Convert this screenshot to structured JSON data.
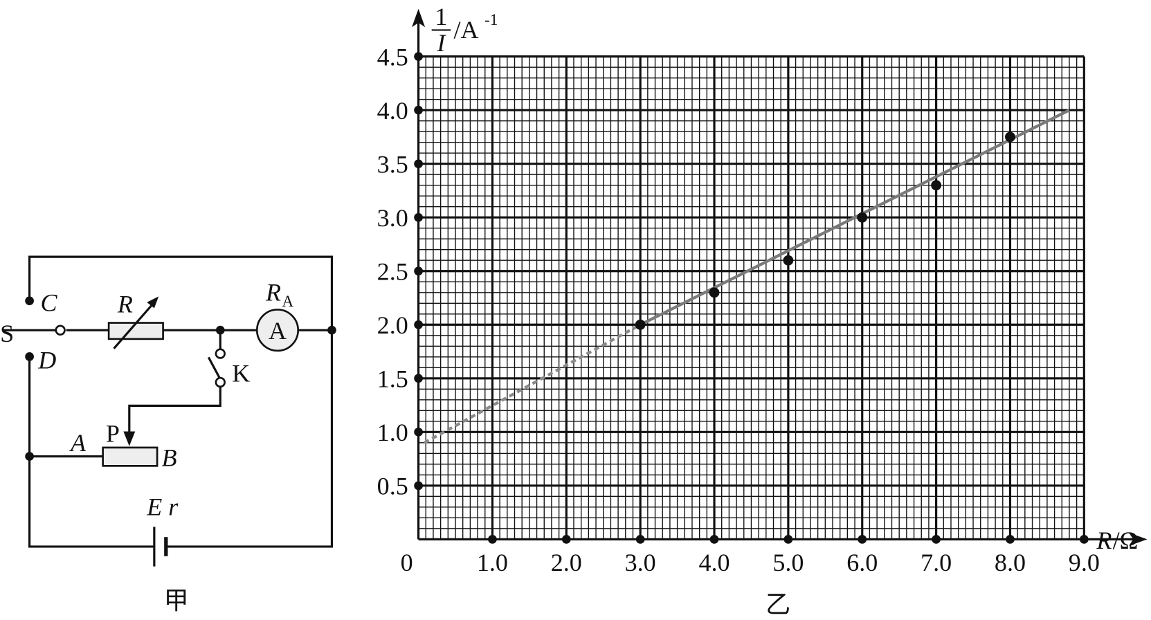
{
  "chart_data": {
    "type": "scatter",
    "caption": "乙",
    "ylabel": {
      "numerator": "1",
      "denominator": "I",
      "unit": "/A",
      "unit_exp": "-1"
    },
    "xlabel": {
      "symbol": "R",
      "unit": "/Ω"
    },
    "x": [
      3,
      4,
      5,
      6,
      7,
      8
    ],
    "series": [
      {
        "color": "#111111",
        "values": [
          2.0,
          2.3,
          2.6,
          3.0,
          3.3,
          3.75
        ]
      }
    ],
    "fit_lines": [
      {
        "style": "dashed",
        "color": "#8a8a8a",
        "x": [
          0.08,
          3.0
        ],
        "values": [
          0.9,
          2.0
        ]
      },
      {
        "style": "solid",
        "color": "#7a7a7a",
        "x": [
          3.0,
          8.8
        ],
        "values": [
          2.0,
          4.0
        ]
      }
    ],
    "xlim": [
      0,
      9
    ],
    "ylim": [
      0,
      4.5
    ],
    "xticks": [
      0,
      {
        "value": 1,
        "label": "1.0"
      },
      {
        "value": 2,
        "label": "2.0"
      },
      {
        "value": 3,
        "label": "3.0"
      },
      {
        "value": 4,
        "label": "4.0"
      },
      {
        "value": 5,
        "label": "5.0"
      },
      {
        "value": 6,
        "label": "6.0"
      },
      {
        "value": 7,
        "label": "7.0"
      },
      {
        "value": 8,
        "label": "8.0"
      },
      {
        "value": 9,
        "label": "9.0"
      }
    ],
    "yticks": [
      0,
      {
        "value": 0.5,
        "label": "0.5"
      },
      {
        "value": 1,
        "label": "1.0"
      },
      {
        "value": 1.5,
        "label": "1.5"
      },
      {
        "value": 2,
        "label": "2.0"
      },
      {
        "value": 2.5,
        "label": "2.5"
      },
      {
        "value": 3,
        "label": "3.0"
      },
      {
        "value": 3.5,
        "label": "3.5"
      },
      {
        "value": 4,
        "label": "4.0"
      },
      {
        "value": 4.5,
        "label": "4.5"
      }
    ],
    "grid": true,
    "minor_divisions": {
      "x": 10,
      "y": 5
    }
  },
  "circuit": {
    "caption": "甲",
    "switch": "S",
    "contact_c": "C",
    "contact_d": "D",
    "resistor": "R",
    "ammeter_resistance": {
      "symbol": "R",
      "subscript": "A"
    },
    "ammeter": "A",
    "key": "K",
    "slider": "P",
    "end_a": "A",
    "end_b": "B",
    "emf": "E r"
  }
}
